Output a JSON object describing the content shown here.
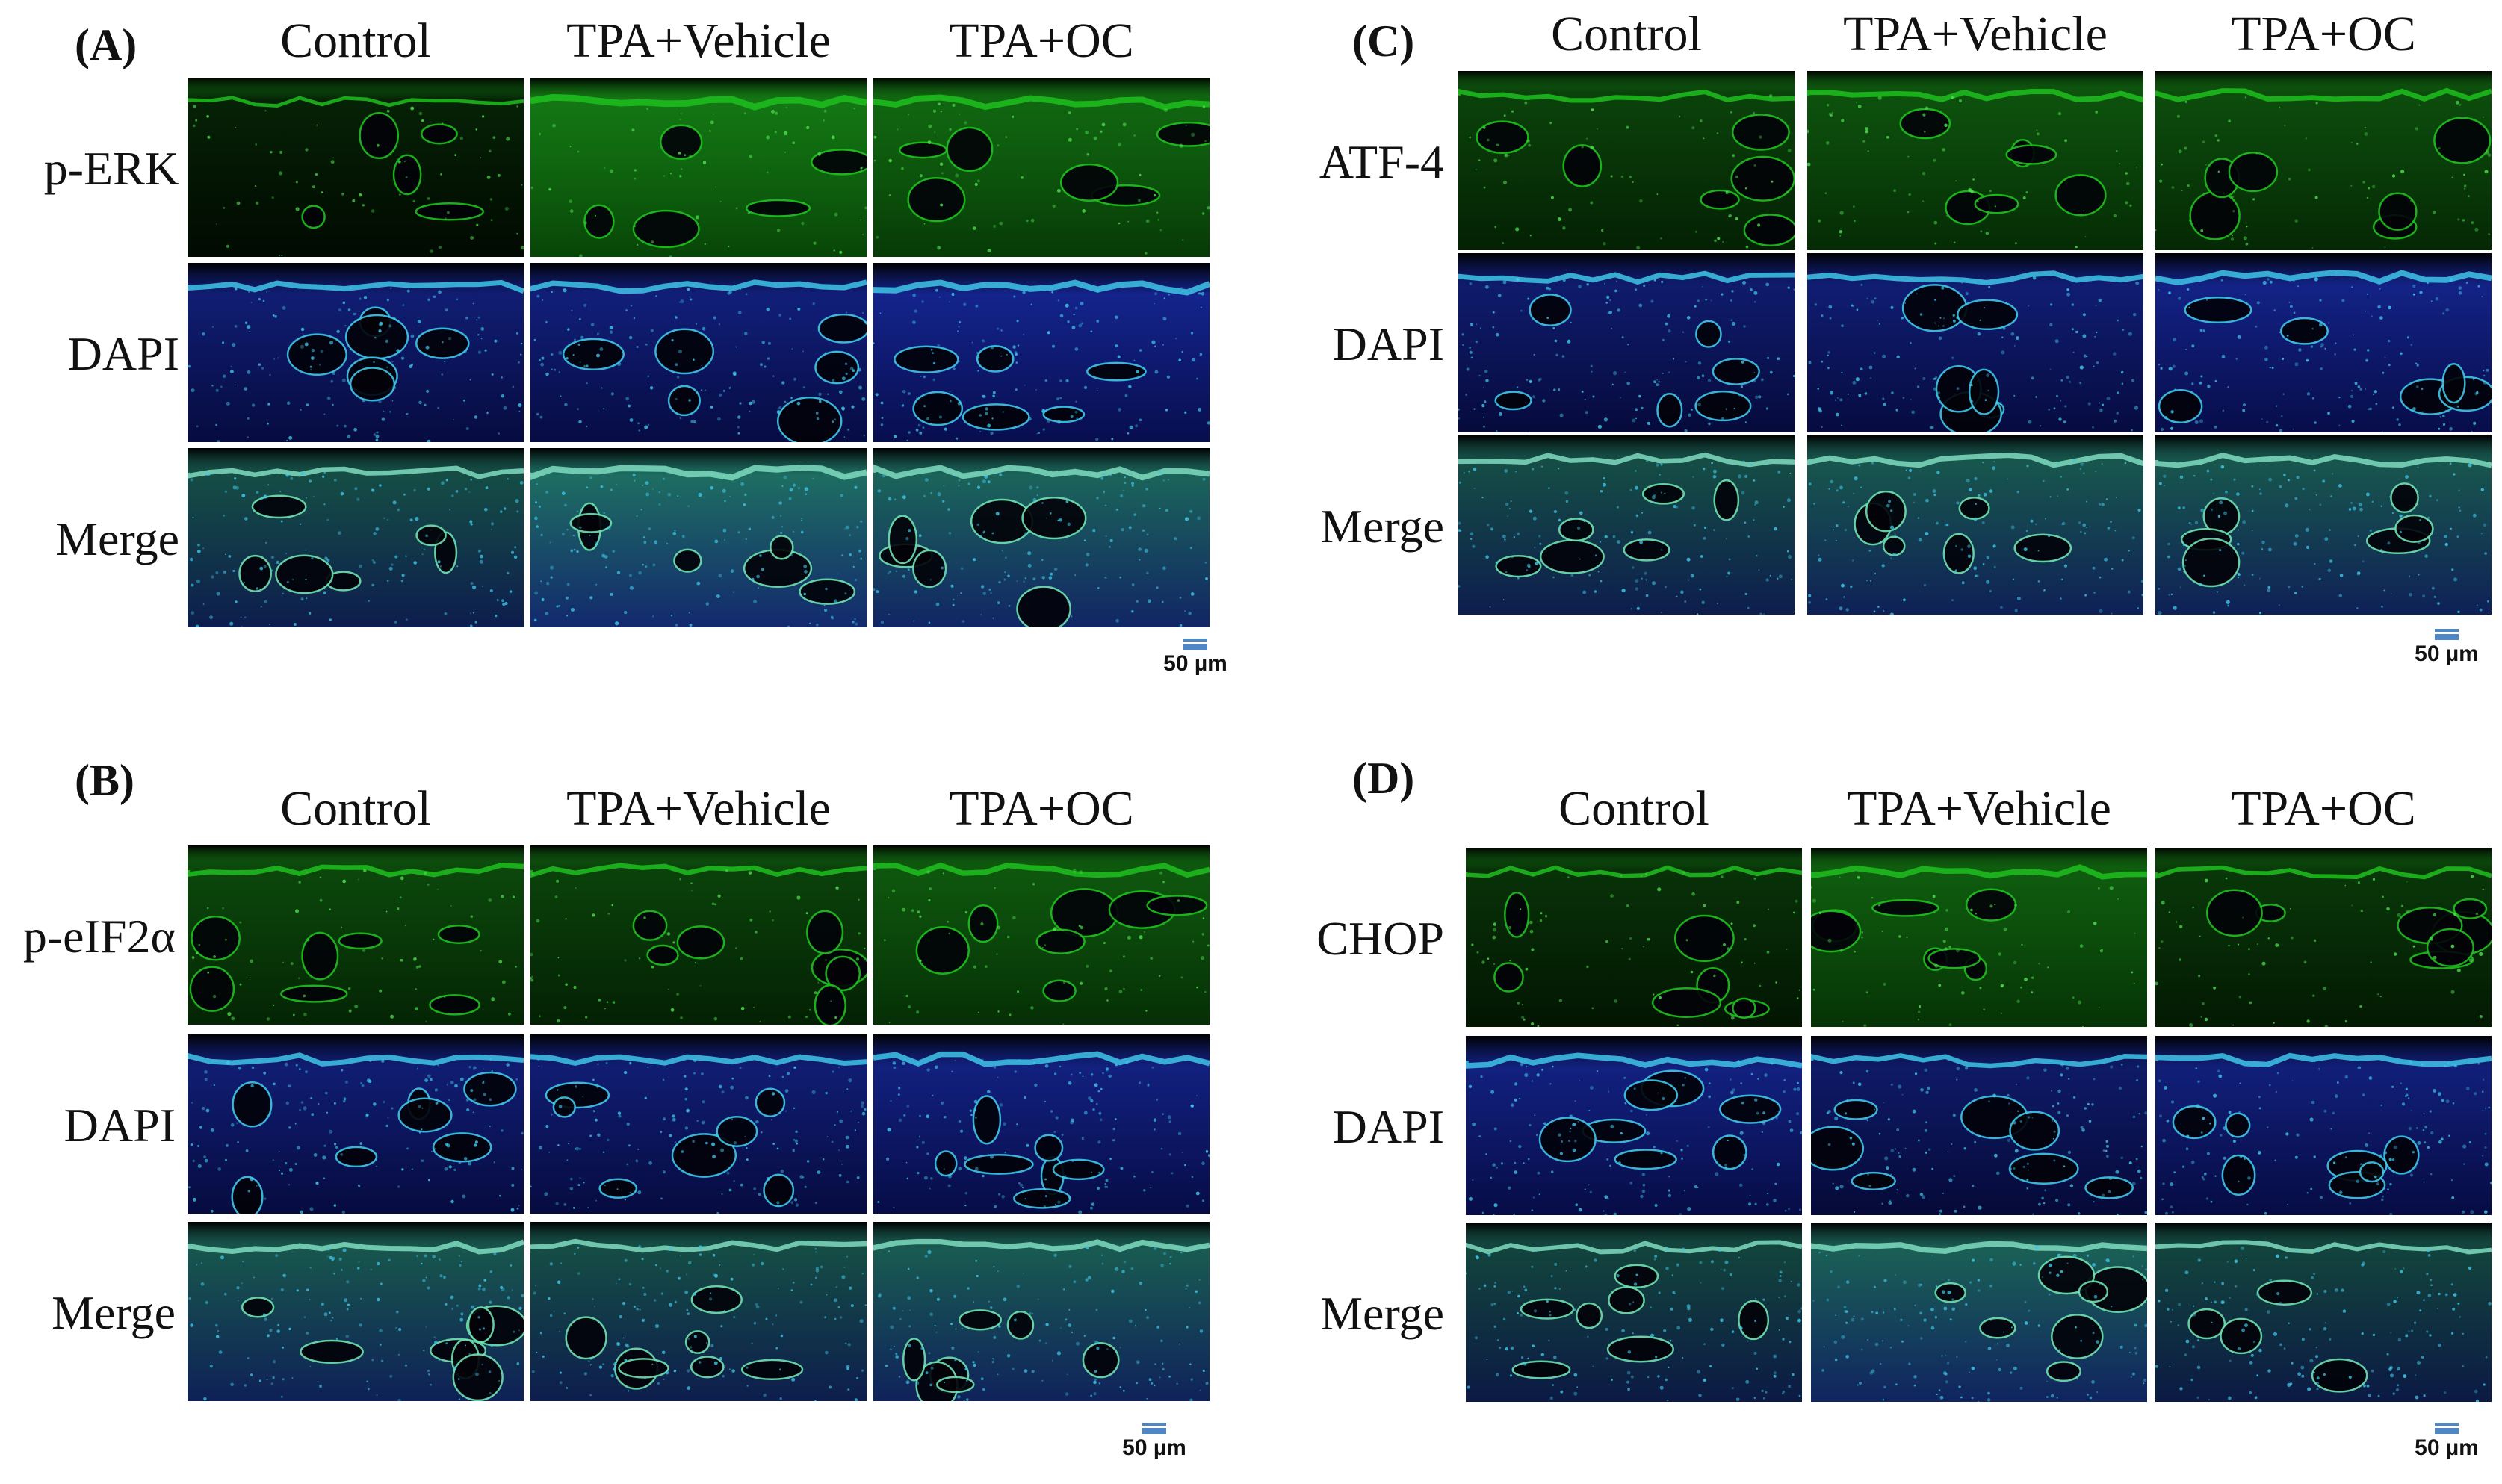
{
  "colors": {
    "green": "#1fbf1f",
    "blue": "#1e3cff",
    "cyan": "#3fc6e8",
    "background": "#000000",
    "scale_bar": "#4f87c6"
  },
  "panels": [
    {
      "letter": "(A)",
      "columns": [
        "Control",
        "TPA+Vehicle",
        "TPA+OC"
      ],
      "rows": [
        "p-ERK",
        "DAPI",
        "Merge"
      ],
      "scale": "50 µm"
    },
    {
      "letter": "(C)",
      "columns": [
        "Control",
        "TPA+Vehicle",
        "TPA+OC"
      ],
      "rows": [
        "ATF-4",
        "DAPI",
        "Merge"
      ],
      "scale": "50 µm"
    },
    {
      "letter": "(B)",
      "columns": [
        "Control",
        "TPA+Vehicle",
        "TPA+OC"
      ],
      "rows": [
        "p-eIF2α",
        "DAPI",
        "Merge"
      ],
      "scale": "50 µm"
    },
    {
      "letter": "(D)",
      "columns": [
        "Control",
        "TPA+Vehicle",
        "TPA+OC"
      ],
      "rows": [
        "CHOP",
        "DAPI",
        "Merge"
      ],
      "scale": "50 µm"
    }
  ],
  "intensity": [
    [
      [
        0.15,
        0.95,
        0.8
      ],
      [
        0.6,
        0.65,
        0.8
      ],
      [
        0.5,
        0.85,
        0.75
      ]
    ],
    [
      [
        0.45,
        0.6,
        0.55
      ],
      [
        0.55,
        0.6,
        0.75
      ],
      [
        0.5,
        0.6,
        0.6
      ]
    ],
    [
      [
        0.5,
        0.45,
        0.65
      ],
      [
        0.6,
        0.6,
        0.7
      ],
      [
        0.6,
        0.5,
        0.65
      ]
    ],
    [
      [
        0.3,
        0.7,
        0.35
      ],
      [
        0.7,
        0.5,
        0.65
      ],
      [
        0.4,
        0.7,
        0.4
      ]
    ]
  ]
}
